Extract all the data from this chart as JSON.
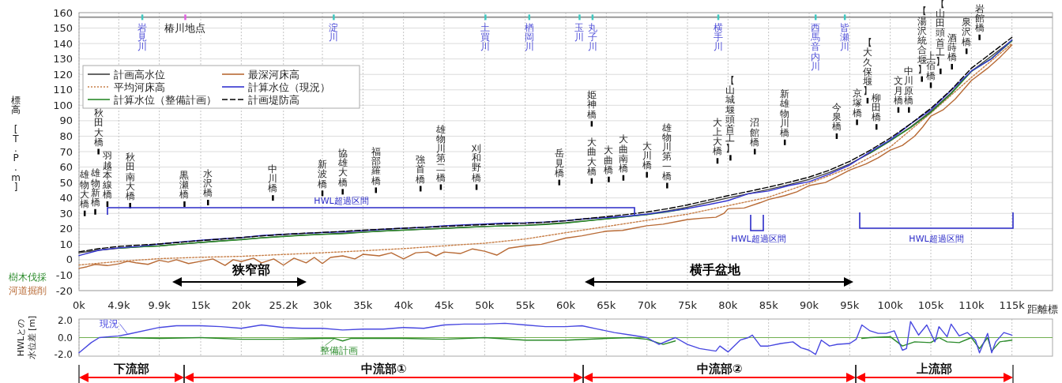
{
  "chart_data": [
    {
      "type": "line",
      "xlabel": "距離標",
      "ylabel": "標高 [T.P.m]",
      "xlim": [
        0,
        120
      ],
      "xticks": [
        {
          "value": 0,
          "label": "0k"
        },
        {
          "value": 4.9,
          "label": "4.9k"
        },
        {
          "value": 9.9,
          "label": "9.9k"
        },
        {
          "value": 15,
          "label": "15k"
        },
        {
          "value": 20,
          "label": "20k"
        },
        {
          "value": 25.2,
          "label": "25.2k"
        },
        {
          "value": 30,
          "label": "30k"
        },
        {
          "value": 35,
          "label": "35k"
        },
        {
          "value": 40,
          "label": "40k"
        },
        {
          "value": 45,
          "label": "45k"
        },
        {
          "value": 50,
          "label": "50k"
        },
        {
          "value": 55,
          "label": "55k"
        },
        {
          "value": 60,
          "label": "60k"
        },
        {
          "value": 65,
          "label": "65k"
        },
        {
          "value": 70,
          "label": "70k"
        },
        {
          "value": 75,
          "label": "75k"
        },
        {
          "value": 80,
          "label": "80k"
        },
        {
          "value": 85,
          "label": "85k"
        },
        {
          "value": 90,
          "label": "90k"
        },
        {
          "value": 95,
          "label": "95k"
        },
        {
          "value": 100,
          "label": "100k"
        },
        {
          "value": 105,
          "label": "105k"
        },
        {
          "value": 110,
          "label": "110k"
        },
        {
          "value": 115,
          "label": "115k"
        }
      ],
      "ylim": [
        -20,
        160
      ],
      "yticks": [
        -20,
        -10,
        0,
        10,
        20,
        30,
        40,
        50,
        60,
        70,
        80,
        90,
        100,
        110,
        120,
        130,
        140,
        150,
        160
      ],
      "grid": true,
      "legend": "top left",
      "series": [
        {
          "name": "計画高水位",
          "color": "#404040",
          "x": [
            0,
            2.5,
            4.9,
            7.5,
            9.9,
            12.5,
            15,
            17.5,
            20,
            22.5,
            25.2,
            27.5,
            30,
            32.5,
            35,
            37.5,
            40,
            42.5,
            45,
            47.5,
            50,
            52.5,
            55,
            57.5,
            60,
            62.5,
            65,
            67.5,
            70,
            72.5,
            75,
            77.5,
            80,
            82.5,
            85,
            87.5,
            90,
            92.5,
            95,
            97.5,
            100,
            102.5,
            105,
            107.5,
            110,
            112.5,
            115
          ],
          "values": [
            4.5,
            6.2,
            7.5,
            8.3,
            9,
            10.1,
            11.2,
            12.2,
            13.2,
            14.2,
            15.2,
            15.9,
            16.5,
            17.2,
            17.9,
            18.6,
            19.2,
            19.8,
            20.4,
            21,
            21.5,
            22,
            22.4,
            23.1,
            24,
            25.2,
            26.5,
            27.9,
            29.5,
            31.6,
            34,
            37,
            40,
            42.7,
            45.5,
            48.6,
            52,
            56.5,
            62,
            69,
            77,
            86,
            96,
            108,
            122,
            132,
            142
          ]
        },
        {
          "name": "最深河床高",
          "color": "#b86a35",
          "x": [
            0,
            1,
            2,
            3.5,
            4.9,
            6,
            7,
            8.5,
            9.9,
            11,
            12,
            13.5,
            15,
            16.5,
            18,
            19,
            20,
            21.5,
            22.5,
            24,
            25.2,
            26.5,
            28,
            29,
            30,
            31,
            32.5,
            34,
            35,
            37,
            38.5,
            40,
            41.5,
            43,
            44,
            45,
            47,
            48.5,
            50,
            51.5,
            53,
            55,
            57,
            58.5,
            60,
            62,
            63.5,
            65,
            67,
            68.5,
            70,
            72,
            74,
            75,
            77,
            78.5,
            79.5,
            80,
            82,
            84,
            85,
            87,
            88.5,
            90,
            92,
            93.5,
            95,
            97,
            98.5,
            100,
            101.5,
            103,
            104,
            105,
            106.5,
            108,
            110,
            112,
            113.5,
            115
          ],
          "values": [
            -5.6,
            -4.5,
            -3,
            -3.8,
            -2.7,
            -1.0,
            -2,
            -3,
            -0.4,
            -1.5,
            0,
            -2.5,
            -1,
            0.5,
            -3.7,
            0,
            -1.2,
            1,
            -2,
            0.5,
            -3.5,
            1,
            -2,
            1.5,
            -2.5,
            1.5,
            2.5,
            0.5,
            3.5,
            2.5,
            4.5,
            0.5,
            4.5,
            5,
            2.5,
            5,
            4,
            7,
            5.5,
            3,
            7.5,
            9,
            10,
            12,
            14,
            15.5,
            17,
            18.5,
            19,
            20.5,
            22,
            23,
            25,
            26,
            27,
            27.5,
            30,
            33,
            33.5,
            37,
            39,
            41.5,
            44,
            48,
            50,
            54,
            58,
            62,
            66,
            71,
            74,
            80,
            86,
            93,
            97,
            104,
            116,
            124,
            131,
            139
          ]
        },
        {
          "name": "平均河床高",
          "color": "#c8804a",
          "line_style": "dotted",
          "x": [
            0,
            4.9,
            9.9,
            15,
            20,
            25.2,
            30,
            35,
            40,
            45,
            50,
            55,
            60,
            65,
            70,
            75,
            80,
            85,
            90,
            95,
            100,
            105,
            110,
            115
          ],
          "values": [
            -3.4,
            -1.1,
            0.7,
            1.6,
            2.2,
            3.4,
            4.5,
            5.8,
            7.2,
            9,
            10.7,
            13.4,
            17.5,
            21.5,
            25.5,
            29.5,
            35,
            40.5,
            49.5,
            59.5,
            73,
            95,
            118,
            140
          ]
        },
        {
          "name": "計算水位（現況）",
          "color": "#3333d0",
          "x": [
            0,
            2.5,
            4.9,
            7.5,
            9.9,
            12.5,
            15,
            17.5,
            20,
            22.5,
            25.2,
            27.5,
            30,
            32.5,
            35,
            37.5,
            40,
            42.5,
            45,
            47.5,
            50,
            52.5,
            55,
            57.5,
            60,
            62.5,
            65,
            67.5,
            70,
            72.5,
            75,
            77.5,
            80,
            82.5,
            85,
            87.5,
            90,
            92.5,
            95,
            97.5,
            100,
            102.5,
            105,
            107.5,
            110,
            112.5,
            115
          ],
          "values": [
            2.7,
            6.2,
            7.7,
            8.7,
            10.2,
            11.5,
            12.6,
            13.5,
            14.3,
            15.7,
            16.4,
            17.0,
            17.6,
            18.1,
            18.9,
            19.6,
            20.4,
            20.9,
            21.9,
            22.6,
            23.1,
            23.7,
            23.9,
            24.4,
            25.3,
            26.5,
            27.3,
            28.2,
            29.5,
            31.2,
            33.2,
            35.6,
            38.3,
            42.7,
            44.5,
            48.0,
            50.5,
            55.5,
            61.3,
            69.8,
            77.6,
            87.9,
            97.0,
            109.6,
            122.2,
            130.2,
            142.3
          ]
        },
        {
          "name": "計算水位（整備計画）",
          "color": "#2a8a2a",
          "x": [
            4.9,
            7.5,
            9.9,
            12.5,
            15,
            17.5,
            20,
            22.5,
            25.2,
            27.5,
            30,
            32.5,
            35,
            37.5,
            40,
            42.5,
            45,
            47.5,
            50,
            52.5,
            55,
            57.5,
            60,
            62.5,
            65,
            67.5,
            70,
            72.5,
            75
          ],
          "values": [
            7.5,
            8.3,
            8.9,
            10.1,
            11.2,
            12.1,
            13.0,
            14.1,
            15.0,
            15.8,
            16.4,
            16.8,
            17.8,
            18.6,
            19.1,
            19.7,
            20.2,
            20.9,
            21.5,
            21.9,
            22.1,
            22.8,
            23.7,
            25.1,
            26.4,
            27.9,
            29.2,
            31.0,
            33.2
          ]
        },
        {
          "name": "計画堤防高",
          "color": "#000000",
          "line_style": "dashed",
          "x": [
            0,
            2.5,
            4.9,
            7.5,
            9.9,
            12.5,
            15,
            17.5,
            20,
            22.5,
            25.2,
            27.5,
            30,
            32.5,
            35,
            37.5,
            40,
            42.5,
            45,
            47.5,
            50,
            52.5,
            55,
            57.5,
            60,
            62.5,
            65,
            67.5,
            70,
            72.5,
            75,
            77.5,
            80,
            82.5,
            85,
            87.5,
            90,
            92.5,
            95,
            97.5,
            100,
            102.5,
            105,
            107.5,
            110,
            112.5,
            115
          ],
          "values": [
            5.1,
            7.2,
            8.6,
            9.5,
            10.2,
            11.3,
            12.4,
            13.4,
            14.4,
            15.4,
            16.4,
            17.1,
            17.7,
            18.4,
            19.1,
            19.8,
            20.4,
            21.0,
            21.6,
            22.2,
            22.7,
            23.2,
            23.6,
            24.3,
            25.2,
            26.6,
            27.9,
            29.3,
            30.9,
            33.0,
            35.5,
            38.5,
            41.5,
            44.2,
            47.0,
            50.1,
            53.5,
            58.0,
            63.7,
            70.8,
            78.8,
            88.0,
            98.0,
            110.0,
            124.0,
            134.0,
            144.0
          ]
        },
        {
          "type": "scatter",
          "color": "#40c8c0",
          "x": [
            7.8,
            31.4,
            50.1,
            55.5,
            61.7,
            63.3,
            78.8,
            90.8,
            94.4
          ],
          "values": [
            157,
            157,
            157,
            157,
            157,
            157,
            157,
            157,
            157
          ],
          "value_labels": [
            "岩見川",
            "淀川",
            "土買川",
            "楢岡川",
            "玉川",
            "丸子川",
            "横手川",
            "西馬音内川",
            "皆瀬川"
          ]
        },
        {
          "type": "scatter",
          "color": "#e060e0",
          "x": [
            13.1
          ],
          "values": [
            157
          ],
          "value_labels": [
            "椿川地点"
          ]
        },
        {
          "type": "scatter",
          "color": "#000000",
          "x": [
            0.7,
            2.0,
            2.4,
            3.5,
            6.3,
            13.0,
            15.9,
            23.9,
            30.0,
            32.5,
            36.6,
            42.1,
            44.6,
            49.0,
            59.2,
            63.2,
            63.2,
            65.3,
            67.1,
            70.0,
            72.5,
            78.7,
            80.3,
            83.3,
            87.0,
            93.4,
            95.9,
            97.2,
            98.3,
            101.0,
            102.3,
            103.9,
            105.0,
            106.2,
            107.6,
            109.4,
            111.0
          ],
          "values": [
            30,
            31,
            70,
            36,
            35,
            36,
            37,
            40,
            43,
            44,
            45,
            46,
            47,
            47,
            50,
            88,
            51,
            52,
            53,
            55,
            48,
            64,
            66,
            70,
            76,
            80,
            89,
            103,
            86,
            97,
            97,
            117,
            113,
            122,
            125,
            135,
            144
          ],
          "value_labels": [
            "雄物大橋",
            "雄物新橋",
            "秋田大橋",
            "羽越本線橋",
            "秋田南大橋",
            "黒瀬橋",
            "水沢橋",
            "中川橋",
            "新波橋",
            "協雄大橋",
            "福部羅橋",
            "強首橋",
            "雄物川第二橋",
            "刈和野橋",
            "岳見橋",
            "姫神橋",
            "大曲大橋",
            "大曲橋",
            "大曲南橋",
            "大川橋",
            "雄物川第一橋",
            "大上大橋",
            "【山城堰頭首工】",
            "沼館橋",
            "新雄物川橋",
            "今泉橋",
            "京塚橋",
            "【大久保堰】",
            "柳田橋",
            "文月橋",
            "中川原橋",
            "【湯沢統合堰】",
            "上宿橋",
            "【山田頭首工】",
            "酒蒔橋",
            "泉沢橋",
            "岩館橋"
          ]
        },
        {
          "color": "#2a8a2a",
          "x": [
            97.5,
            100,
            102.5,
            105,
            107.5,
            110,
            112.5,
            115
          ],
          "values": [
            69.0,
            77.1,
            85.5,
            95.4,
            107.5,
            122.0,
            130.4,
            141.7
          ]
        }
      ],
      "ref_lines": [
        {
          "axis": "y",
          "value": 157,
          "color": "#999999"
        }
      ],
      "annotations": [
        "樹木伐採",
        "河道掘削",
        "HWL超過区間",
        "HWL超過区間",
        "HWL超過区間",
        "狭窄部",
        "横手盆地"
      ]
    },
    {
      "type": "line",
      "ylabel": "HWLとの水位差 [m]",
      "xlim": [
        0,
        120
      ],
      "xticks": [
        0,
        4.9,
        9.9,
        15,
        20,
        25.2,
        30,
        35,
        40,
        45,
        50,
        55,
        60,
        65,
        70,
        75,
        80,
        85,
        90,
        95,
        100,
        105,
        110,
        115
      ],
      "ylim": [
        -2.2,
        2.2
      ],
      "yticks": [
        {
          "value": -2,
          "label": "-2.0"
        },
        {
          "value": 0,
          "label": "0.0"
        },
        {
          "value": 2,
          "label": "2.0"
        }
      ],
      "tick_labels": "y",
      "grid": "x",
      "series": [
        {
          "name": "整備計画",
          "color": "#2a8a2a",
          "x": [
            5,
            10,
            15,
            20,
            25.2,
            30,
            31.5,
            32.5,
            33.5,
            35,
            40,
            45,
            50,
            55,
            60,
            65,
            68,
            70,
            72,
            73.5
          ],
          "values": [
            0,
            -0.1,
            0,
            -0.2,
            -0.2,
            -0.1,
            -0.1,
            -0.4,
            -0.1,
            -0.1,
            -0.1,
            -0.2,
            0,
            -0.3,
            -0.3,
            -0.1,
            0,
            -0.2,
            -0.8,
            -0.4
          ]
        },
        {
          "color": "#2a8a2a",
          "x": [
            96.5,
            97.5,
            100,
            101.5,
            103,
            105,
            106,
            107,
            108.5,
            110,
            111,
            112,
            112.5,
            113.5,
            115
          ],
          "values": [
            -0.1,
            0,
            0.1,
            -1.0,
            -0.5,
            -0.6,
            0,
            -0.5,
            -0.6,
            0,
            -1.3,
            0,
            -1.6,
            -0.5,
            -0.3
          ]
        },
        {
          "name": "現況",
          "color": "#4848e0",
          "x": [
            0,
            1.5,
            2.5,
            4.9,
            6,
            9.9,
            12,
            15,
            17.5,
            20,
            22.5,
            25.2,
            27.5,
            30,
            32.5,
            35,
            37.5,
            40,
            42.5,
            45,
            47.5,
            50,
            52.5,
            55,
            57.5,
            60,
            62,
            64,
            66,
            68,
            70,
            71.5,
            72.5,
            73.5,
            75,
            76.5,
            78.5,
            79,
            80,
            81.5,
            82.5,
            83,
            84,
            85,
            86.5,
            88,
            89,
            90,
            90.8,
            91.5,
            92.5,
            93.5,
            95,
            95.8,
            96.5,
            97.5,
            98.5,
            99.5,
            100.5,
            101.5,
            102,
            102.5,
            103.5,
            104.5,
            105.5,
            106,
            107,
            107.5,
            108.5,
            109.5,
            110.5,
            111,
            112,
            112.5,
            113,
            114,
            115
          ],
          "values": [
            -1.8,
            -0.6,
            0,
            0.2,
            0.4,
            1.2,
            1.4,
            1.4,
            1.3,
            1.1,
            1.5,
            1.2,
            1.1,
            1.1,
            0.9,
            1.0,
            1.0,
            1.2,
            1.1,
            1.5,
            1.6,
            1.6,
            1.7,
            1.5,
            1.3,
            1.3,
            1.4,
            1.0,
            0.6,
            0.3,
            0.0,
            -0.8,
            -0.4,
            0,
            -0.8,
            -1.3,
            -1.6,
            -1.0,
            -1.7,
            -0.3,
            0.0,
            0.3,
            -1.0,
            -1.0,
            -0.7,
            -0.5,
            -1.2,
            -1.5,
            -2.0,
            -0.3,
            -1.0,
            -0.8,
            -0.7,
            -0.2,
            1.5,
            0.8,
            0.5,
            0.5,
            0.8,
            -1.5,
            -1.3,
            1.9,
            0.3,
            1.5,
            -0.5,
            1.3,
            0.1,
            1.6,
            0.2,
            0.6,
            -0.3,
            -1.8,
            0.5,
            -1.8,
            -0.5,
            0.6,
            0.3
          ]
        }
      ],
      "ref_lines": [
        {
          "axis": "y",
          "value": 0,
          "color": "#70b050"
        }
      ],
      "annotations": [
        "下流部",
        "中流部①",
        "中流部②",
        "上流部"
      ]
    }
  ]
}
